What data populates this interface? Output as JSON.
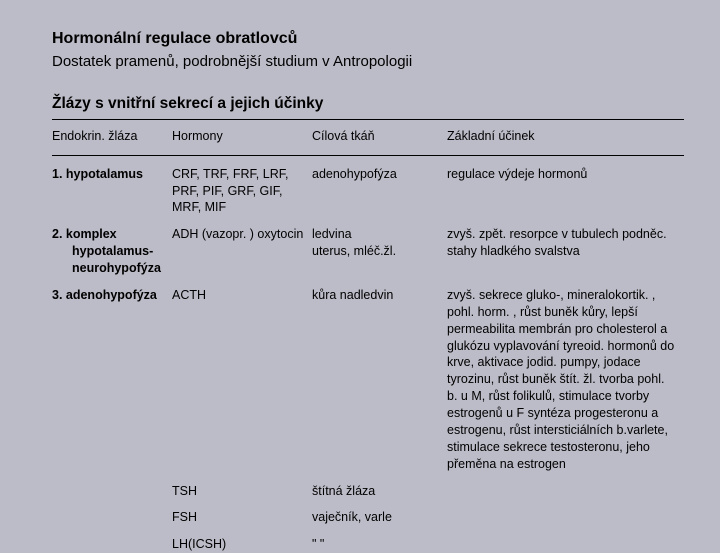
{
  "title": "Hormonální regulace obratlovců",
  "subtitle": "Dostatek pramenů, podrobnější studium v Antropologii",
  "section": "Žlázy s vnitřní sekrecí a jejich účinky",
  "headers": {
    "c1": "Endokrin. žláza",
    "c2": "Hormony",
    "c3": "Cílová tkáň",
    "c4": "Základní účinek"
  },
  "rows": [
    {
      "c1": "1. hypotalamus",
      "c2": "CRF, TRF, FRF, LRF, PRF, PIF, GRF, GIF, MRF, MIF",
      "c3": "adenohypofýza",
      "c4": " regulace výdeje hormonů",
      "bold1": true
    },
    {
      "c1a": "2. komplex",
      "c1b": "hypotalamus-neurohypofýza",
      "c2": "ADH (vazopr. ) oxytocin",
      "c3": "ledvina\nuterus, mléč.žl.",
      "c4": "zvyš. zpět. resorpce v tubulech podněc. stahy hladkého svalstva",
      "bold1": true,
      "multi1": true
    },
    {
      "c1": "3. adenohypofýza",
      "c2": "ACTH",
      "c3": "kůra nadledvin",
      "c4": "zvyš. sekrece gluko-, mineralokortik. , pohl. horm. , růst buněk kůry, lepší permeabilita membrán pro cholesterol a glukózu vyplavování tyreoid. hormonů do krve, aktivace jodid. pumpy, jodace tyrozinu, růst buněk štít. žl. tvorba pohl. b. u M, růst folikulů, stimulace tvorby estrogenů u F syntéza progesteronu a estrogenu, růst intersticiálních b.varlete, stimulace sekrece testosteronu, jeho přeměna na estrogen",
      "bold1": true,
      "span4": 4
    },
    {
      "c1": "",
      "c2": "TSH",
      "c3": "štítná žláza",
      "skip4": true
    },
    {
      "c1": "",
      "c2": " FSH",
      "c3": "vaječník, varle",
      "skip4": true
    },
    {
      "c1": "",
      "c2": "LH(ICSH)",
      "c3": "\"                      \"",
      "skip4": true
    }
  ]
}
